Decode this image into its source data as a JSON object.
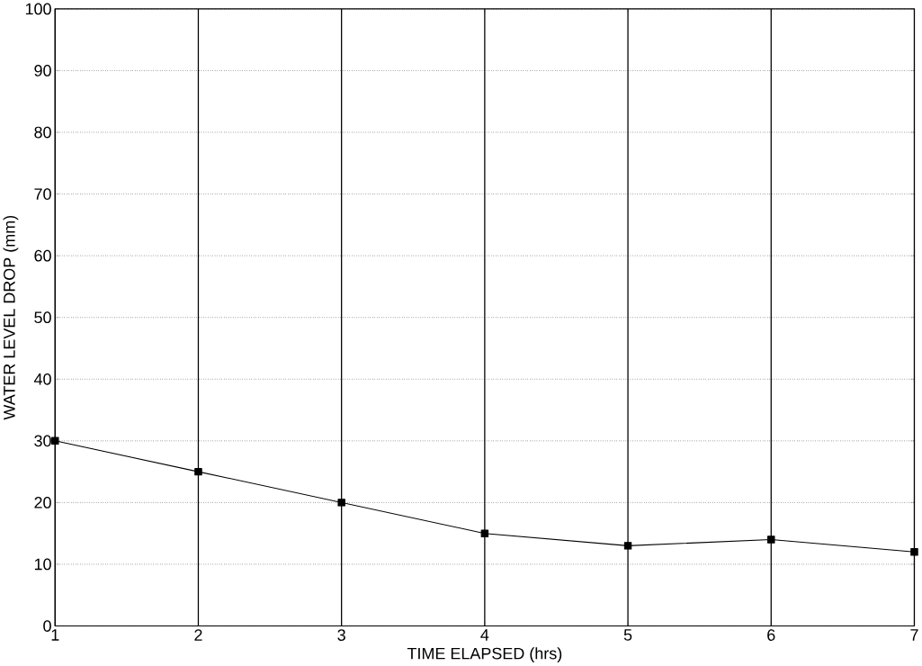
{
  "chart_data": {
    "type": "line",
    "xlabel": "TIME ELAPSED (hrs)",
    "ylabel": "WATER LEVEL DROP (mm)",
    "x": [
      1,
      2,
      3,
      4,
      5,
      6,
      7
    ],
    "series": [
      {
        "color": "#000000",
        "values": [
          30,
          25,
          20,
          15,
          13,
          14,
          12
        ]
      }
    ],
    "xlim": [
      1,
      7
    ],
    "ylim": [
      0,
      100
    ],
    "xticks": [
      1,
      2,
      3,
      4,
      5,
      6,
      7
    ],
    "yticks": [
      0,
      10,
      20,
      30,
      40,
      50,
      60,
      70,
      80,
      90,
      100
    ],
    "grid": true,
    "marker": "square",
    "line_style": "solid"
  }
}
